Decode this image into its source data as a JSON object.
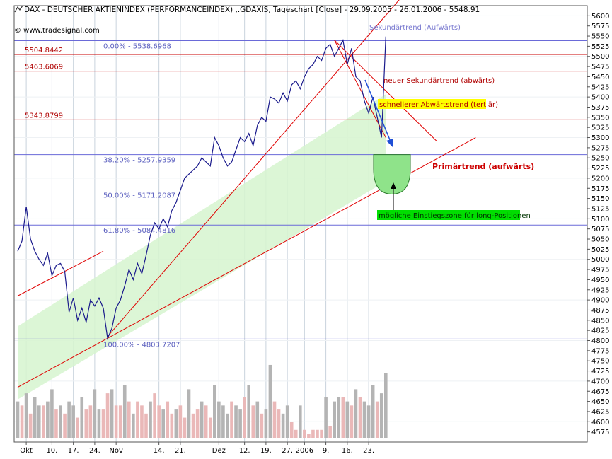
{
  "header": {
    "title": "DAX  - DEUTSCHER AKTIENINDEX (PERFORMANCEINDEX) ,.GDAXIS, Tageschart [Close] - 29.09.2005 - 26.01.2006 - 5548.91",
    "copyright": "© www.tradesignal.com"
  },
  "colors": {
    "price_line": "#1a1a8c",
    "red_line": "#e00000",
    "fib_line": "#6a6ad8",
    "channel_fill": "#d6f5cf",
    "zone_fill": "#8fe38a",
    "volume_grey": "#b4b4b4",
    "volume_pink": "#eab8b8",
    "grid": "#c9d3dd",
    "badge_yellow": "#ffff00",
    "badge_green": "#00dd00"
  },
  "chart_data": {
    "type": "line",
    "title": "DAX  - DEUTSCHER AKTIENINDEX (PERFORMANCEINDEX) ,.GDAXIS, Tageschart [Close] - 29.09.2005 - 26.01.2006 - 5548.91",
    "ylim": [
      4550,
      5625
    ],
    "y_ticks": [
      4575,
      4600,
      4625,
      4650,
      4675,
      4700,
      4725,
      4750,
      4775,
      4800,
      4825,
      4850,
      4875,
      4900,
      4925,
      4950,
      4975,
      5000,
      5025,
      5050,
      5075,
      5100,
      5125,
      5150,
      5175,
      5200,
      5225,
      5250,
      5275,
      5300,
      5325,
      5350,
      5375,
      5400,
      5425,
      5450,
      5475,
      5500,
      5525,
      5550,
      5575,
      5600
    ],
    "x_tick_labels": [
      "Okt",
      "10.",
      "17.",
      "24.",
      "Nov",
      "14.",
      "21.",
      "Dez",
      "12.",
      "19.",
      "27.",
      "2006",
      "9.",
      "16.",
      "23."
    ],
    "x_tick_index": [
      2,
      8,
      13,
      18,
      23,
      33,
      38,
      47,
      53,
      58,
      63,
      67,
      72,
      77,
      82
    ],
    "grid": true,
    "price_series": {
      "name": "DAX",
      "values": [
        5020,
        5045,
        5130,
        5050,
        5020,
        5000,
        4985,
        5015,
        4960,
        4985,
        4990,
        4970,
        4870,
        4905,
        4850,
        4880,
        4845,
        4900,
        4885,
        4905,
        4880,
        4805,
        4830,
        4880,
        4900,
        4935,
        4975,
        4950,
        4990,
        4965,
        5010,
        5060,
        5090,
        5075,
        5100,
        5080,
        5120,
        5140,
        5170,
        5200,
        5210,
        5220,
        5230,
        5250,
        5240,
        5230,
        5300,
        5280,
        5250,
        5230,
        5240,
        5270,
        5300,
        5290,
        5310,
        5280,
        5330,
        5350,
        5340,
        5400,
        5395,
        5385,
        5410,
        5390,
        5430,
        5440,
        5420,
        5450,
        5470,
        5480,
        5500,
        5490,
        5520,
        5530,
        5500,
        5520,
        5540,
        5480,
        5520,
        5450,
        5440,
        5390,
        5360,
        5400,
        5350,
        5300,
        5548.91
      ]
    },
    "fibonacci_levels": [
      {
        "label": "0.00% - 5538.6968",
        "value": 5538.6968
      },
      {
        "label": "38.20% - 5257.9359",
        "value": 5257.9359
      },
      {
        "label": "50.00% - 5171.2087",
        "value": 5171.2087
      },
      {
        "label": "61.80% - 5084.4816",
        "value": 5084.4816
      },
      {
        "label": "100.00% - 4803.7207",
        "value": 4803.7207
      }
    ],
    "horizontal_levels": [
      {
        "label": "5504.8442",
        "value": 5504.8442
      },
      {
        "label": "5463.6069",
        "value": 5463.6069
      },
      {
        "label": "5343.8799",
        "value": 5343.8799
      }
    ],
    "trend_lines": [
      {
        "name": "Primärtrend (aufwärts)",
        "from": [
          0,
          4685
        ],
        "to": [
          107,
          5300
        ]
      },
      {
        "name": "Sekundärtrend (Aufwärts)",
        "from": [
          21,
          4810
        ],
        "to": [
          90,
          5650
        ]
      },
      {
        "name": "neuer Sekundärtrend (abwärts)",
        "from": [
          74,
          5540
        ],
        "to": [
          98,
          5290
        ]
      },
      {
        "name": "schnellerer Abwärtstrend (tertiär)",
        "from": [
          74,
          5540
        ],
        "to": [
          86,
          5300
        ]
      },
      {
        "name": "",
        "from": [
          0,
          4910
        ],
        "to": [
          20,
          5020
        ]
      }
    ],
    "annotations": [
      {
        "text": "Sekundärtrend (Aufwärts)",
        "style": "blue"
      },
      {
        "text": "neuer Sekundärtrend (abwärts)",
        "style": "red"
      },
      {
        "text": "schnellerer Abwärtstrend (tertiär)",
        "style": "yellow-badge"
      },
      {
        "text": "Primärtrend (aufwärts)",
        "style": "red-bold"
      },
      {
        "text": "mögliche Einstiegszone für long-Positionen",
        "style": "green-badge"
      }
    ],
    "entry_zone": {
      "y_top": 5257.9359,
      "y_bottom": 5171.2087
    },
    "volume": {
      "ylim": [
        4550,
        5625
      ],
      "values": [
        4650,
        4640,
        4670,
        4620,
        4660,
        4640,
        4640,
        4650,
        4680,
        4630,
        4640,
        4620,
        4650,
        4640,
        4610,
        4660,
        4630,
        4640,
        4680,
        4630,
        4630,
        4670,
        4680,
        4640,
        4640,
        4690,
        4650,
        4620,
        4650,
        4640,
        4620,
        4650,
        4670,
        4640,
        4630,
        4650,
        4620,
        4630,
        4640,
        4610,
        4680,
        4620,
        4630,
        4650,
        4640,
        4610,
        4690,
        4650,
        4640,
        4620,
        4650,
        4640,
        4630,
        4660,
        4690,
        4640,
        4650,
        4620,
        4630,
        4740,
        4650,
        4630,
        4620,
        4640,
        4600,
        4580,
        4640,
        4580,
        4570,
        4580,
        4580,
        4580,
        4660,
        4590,
        4650,
        4660,
        4660,
        4650,
        4640,
        4680,
        4660,
        4650,
        4640,
        4690,
        4650,
        4670,
        4720
      ],
      "colors": [
        "g",
        "p",
        "g",
        "p",
        "g",
        "g",
        "p",
        "g",
        "g",
        "p",
        "g",
        "p",
        "g",
        "g",
        "p",
        "g",
        "p",
        "p",
        "g",
        "g",
        "p",
        "p",
        "g",
        "p",
        "p",
        "g",
        "p",
        "g",
        "p",
        "p",
        "p",
        "g",
        "p",
        "p",
        "g",
        "p",
        "p",
        "g",
        "p",
        "p",
        "g",
        "p",
        "p",
        "g",
        "p",
        "p",
        "g",
        "g",
        "g",
        "g",
        "p",
        "g",
        "g",
        "p",
        "g",
        "p",
        "g",
        "p",
        "g",
        "g",
        "p",
        "p",
        "g",
        "g",
        "p",
        "p",
        "g",
        "p",
        "p",
        "p",
        "p",
        "p",
        "g",
        "p",
        "g",
        "g",
        "p",
        "g",
        "p",
        "g",
        "p",
        "g",
        "g",
        "g",
        "p",
        "g",
        "g"
      ]
    }
  }
}
